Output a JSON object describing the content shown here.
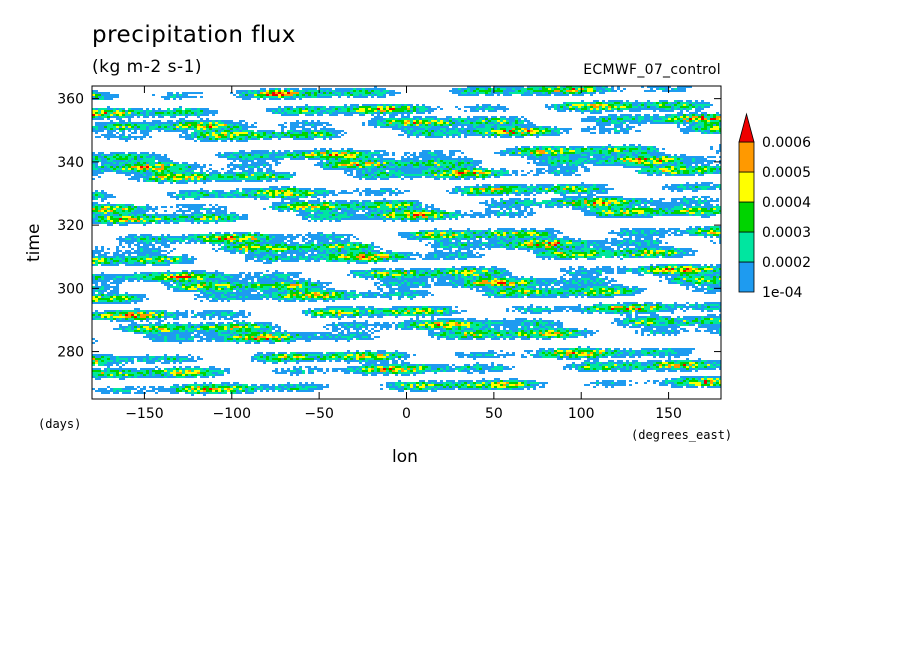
{
  "chart_data": {
    "type": "heatmap",
    "title": "precipitation flux",
    "units": "(kg m-2 s-1)",
    "run_label": "ECMWF_07_control",
    "xlabel": "lon",
    "ylabel": "time",
    "xunits": "(degrees_east)",
    "yunits": "(days)",
    "xlim": [
      -180,
      180
    ],
    "ylim": [
      265,
      364
    ],
    "x_ticks": [
      -150,
      -100,
      -50,
      0,
      50,
      100,
      150
    ],
    "y_ticks": [
      280,
      300,
      320,
      340,
      360
    ],
    "colorbar": {
      "levels": [
        0.0001,
        0.0002,
        0.0003,
        0.0004,
        0.0005,
        0.0006
      ],
      "labels": [
        "1e-04",
        "0.0002",
        "0.0003",
        "0.0004",
        "0.0005",
        "0.0006"
      ],
      "colors": [
        "#1e9bf0",
        "#00e6a0",
        "#00d400",
        "#ffff00",
        "#ff9900",
        "#ee0000"
      ],
      "extend": "max"
    },
    "pattern": {
      "description_free": true,
      "streak_slope_deg_per_day": 9,
      "event_times": [
        268,
        274,
        279,
        284,
        288,
        293,
        297,
        301,
        305,
        309,
        313,
        317,
        322,
        326,
        331,
        335,
        339,
        343,
        348,
        352,
        357,
        361
      ]
    }
  }
}
